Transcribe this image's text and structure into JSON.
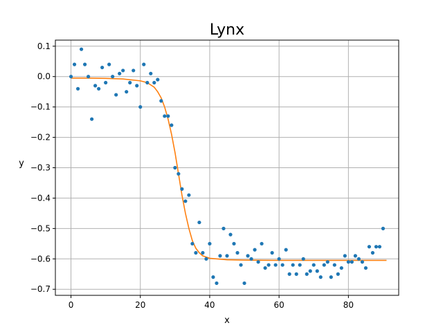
{
  "chart_data": {
    "type": "scatter",
    "title": "Lynx",
    "xlabel": "x",
    "ylabel": "y",
    "xlim": [
      -4.5,
      94.5
    ],
    "ylim": [
      -0.72,
      0.12
    ],
    "xticks": [
      0,
      20,
      40,
      60,
      80
    ],
    "yticks": [
      0.1,
      0.0,
      -0.1,
      -0.2,
      -0.3,
      -0.4,
      -0.5,
      -0.6,
      -0.7
    ],
    "xtick_labels": [
      "0",
      "20",
      "40",
      "60",
      "80"
    ],
    "ytick_labels": [
      "0.1",
      "0.0",
      "−0.1",
      "−0.2",
      "−0.3",
      "−0.4",
      "−0.5",
      "−0.6",
      "−0.7"
    ],
    "grid": true,
    "legend": "none",
    "colors": {
      "points": "#1f77b4",
      "fit": "#ff7f0e"
    },
    "series": [
      {
        "kind": "scatter",
        "x": [
          0,
          1,
          2,
          3,
          4,
          5,
          6,
          7,
          8,
          9,
          10,
          11,
          12,
          13,
          14,
          15,
          16,
          17,
          18,
          19,
          20,
          21,
          22,
          23,
          24,
          25,
          26,
          27,
          28,
          29,
          30,
          31,
          32,
          33,
          34,
          35,
          36,
          37,
          38,
          39,
          40,
          41,
          42,
          43,
          44,
          45,
          46,
          47,
          48,
          49,
          50,
          51,
          52,
          53,
          54,
          55,
          56,
          57,
          58,
          59,
          60,
          61,
          62,
          63,
          64,
          65,
          66,
          67,
          68,
          69,
          70,
          71,
          72,
          73,
          74,
          75,
          76,
          77,
          78,
          79,
          80,
          81,
          82,
          83,
          84,
          85,
          86,
          87,
          88,
          89,
          90
        ],
        "y": [
          0.0,
          0.04,
          -0.04,
          0.09,
          0.04,
          0.0,
          -0.14,
          -0.03,
          -0.04,
          0.03,
          -0.02,
          0.04,
          0.0,
          -0.06,
          0.01,
          0.02,
          -0.05,
          -0.02,
          0.02,
          -0.03,
          -0.1,
          0.04,
          -0.02,
          0.01,
          -0.02,
          -0.01,
          -0.08,
          -0.13,
          -0.13,
          -0.16,
          -0.3,
          -0.32,
          -0.37,
          -0.41,
          -0.39,
          -0.55,
          -0.58,
          -0.48,
          -0.58,
          -0.6,
          -0.55,
          -0.66,
          -0.68,
          -0.59,
          -0.5,
          -0.59,
          -0.52,
          -0.55,
          -0.58,
          -0.62,
          -0.68,
          -0.59,
          -0.6,
          -0.57,
          -0.61,
          -0.55,
          -0.63,
          -0.62,
          -0.58,
          -0.62,
          -0.6,
          -0.62,
          -0.57,
          -0.65,
          -0.62,
          -0.65,
          -0.62,
          -0.6,
          -0.65,
          -0.64,
          -0.62,
          -0.64,
          -0.66,
          -0.62,
          -0.61,
          -0.66,
          -0.62,
          -0.65,
          -0.63,
          -0.59,
          -0.61,
          -0.61,
          -0.59,
          -0.6,
          -0.61,
          -0.63,
          -0.56,
          -0.58,
          -0.56,
          -0.56,
          -0.5
        ]
      },
      {
        "kind": "line",
        "x": [
          0,
          5,
          10,
          15,
          20,
          22,
          24,
          25,
          26,
          27,
          28,
          29,
          30,
          31,
          32,
          33,
          34,
          35,
          36,
          37,
          38,
          40,
          45,
          50,
          60,
          70,
          80,
          91
        ],
        "y": [
          -0.005,
          -0.005,
          -0.006,
          -0.008,
          -0.014,
          -0.02,
          -0.035,
          -0.05,
          -0.07,
          -0.1,
          -0.14,
          -0.19,
          -0.25,
          -0.32,
          -0.39,
          -0.45,
          -0.5,
          -0.54,
          -0.565,
          -0.58,
          -0.59,
          -0.598,
          -0.603,
          -0.604,
          -0.605,
          -0.605,
          -0.605,
          -0.605
        ]
      }
    ]
  }
}
